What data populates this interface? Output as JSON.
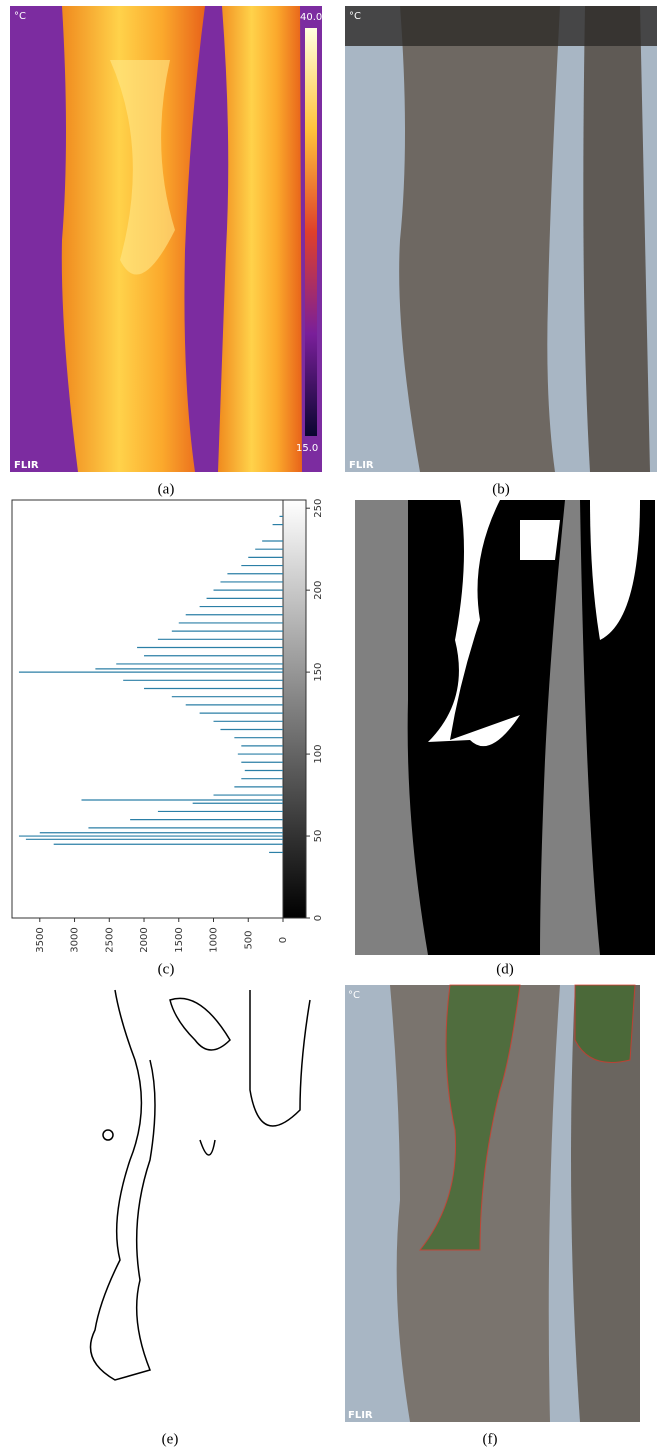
{
  "panels": {
    "labels": [
      "(a)",
      "(b)",
      "(c)",
      "(d)",
      "(e)",
      "(f)"
    ],
    "thermal": {
      "unit": "°C",
      "max": "40.0",
      "min": "15.0",
      "brand": "FLIR"
    },
    "photo_b": {
      "unit": "°C",
      "brand": "FLIR"
    },
    "photo_f": {
      "unit": "°C",
      "brand": "FLIR"
    }
  },
  "chart_data": {
    "type": "bar",
    "orientation": "horizontal",
    "color": "#2b7fa6",
    "x": [
      40,
      45,
      48,
      50,
      52,
      55,
      60,
      65,
      70,
      72,
      75,
      80,
      85,
      90,
      95,
      100,
      105,
      110,
      115,
      120,
      125,
      130,
      135,
      140,
      145,
      150,
      152,
      155,
      160,
      165,
      170,
      175,
      180,
      185,
      190,
      195,
      200,
      205,
      210,
      215,
      220,
      225,
      230,
      240,
      245
    ],
    "values": [
      200,
      3300,
      3700,
      3800,
      3500,
      2800,
      2200,
      1800,
      1300,
      2900,
      1000,
      700,
      600,
      550,
      600,
      650,
      600,
      700,
      900,
      1000,
      1200,
      1400,
      1600,
      2000,
      2300,
      3800,
      2700,
      2400,
      2000,
      2100,
      1800,
      1600,
      1500,
      1400,
      1200,
      1100,
      1000,
      900,
      800,
      600,
      500,
      400,
      300,
      150,
      50
    ],
    "xlim": [
      0,
      255
    ],
    "xticks": [
      0,
      50,
      100,
      150,
      200,
      250
    ],
    "ylim": [
      0,
      3900
    ],
    "yticks": [
      0,
      500,
      1000,
      1500,
      2000,
      2500,
      3000,
      3500
    ]
  }
}
